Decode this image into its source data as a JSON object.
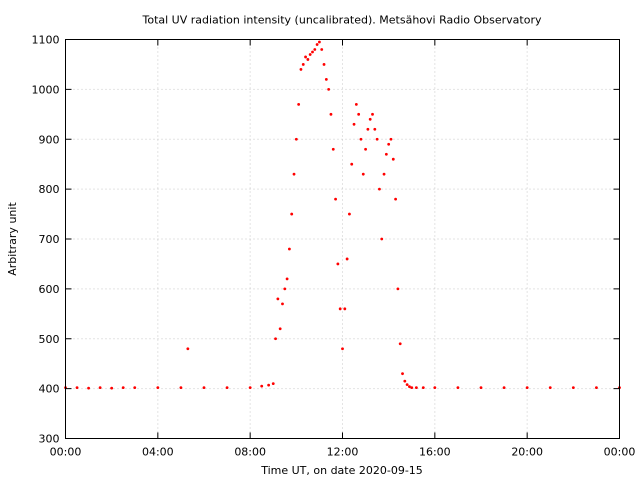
{
  "chart_data": {
    "type": "scatter",
    "title": "Total UV radiation intensity (uncalibrated). Metsähovi Radio Observatory",
    "xlabel": "Time UT, on date 2020-09-15",
    "ylabel": "Arbitrary unit",
    "xlim_hours": [
      0,
      24
    ],
    "ylim": [
      300,
      1100
    ],
    "grid": true,
    "legend": "none",
    "x_ticks": [
      {
        "hour": 0,
        "label": "00:00"
      },
      {
        "hour": 4,
        "label": "04:00"
      },
      {
        "hour": 8,
        "label": "08:00"
      },
      {
        "hour": 12,
        "label": "12:00"
      },
      {
        "hour": 16,
        "label": "16:00"
      },
      {
        "hour": 20,
        "label": "20:00"
      },
      {
        "hour": 24,
        "label": "00:00"
      }
    ],
    "y_ticks": [
      300,
      400,
      500,
      600,
      700,
      800,
      900,
      1000,
      1100
    ],
    "series": [
      {
        "color": "#ff0000",
        "x_hours": [
          0.0,
          0.5,
          1.0,
          1.5,
          2.0,
          2.5,
          3.0,
          4.0,
          5.0,
          5.3,
          6.0,
          7.0,
          8.0,
          8.5,
          8.8,
          9.0,
          9.1,
          9.2,
          9.3,
          9.4,
          9.5,
          9.6,
          9.7,
          9.8,
          9.9,
          10.0,
          10.1,
          10.2,
          10.3,
          10.4,
          10.5,
          10.6,
          10.7,
          10.8,
          10.9,
          11.0,
          11.1,
          11.2,
          11.3,
          11.4,
          11.5,
          11.6,
          11.7,
          11.8,
          11.9,
          12.0,
          12.1,
          12.2,
          12.3,
          12.4,
          12.5,
          12.6,
          12.7,
          12.8,
          12.9,
          13.0,
          13.1,
          13.2,
          13.3,
          13.4,
          13.5,
          13.6,
          13.7,
          13.8,
          13.9,
          14.0,
          14.1,
          14.2,
          14.3,
          14.4,
          14.5,
          14.6,
          14.7,
          14.8,
          14.9,
          15.0,
          15.2,
          15.5,
          16.0,
          17.0,
          18.0,
          19.0,
          20.0,
          21.0,
          22.0,
          23.0,
          24.0
        ],
        "y": [
          402,
          402,
          401,
          402,
          401,
          402,
          402,
          402,
          402,
          480,
          402,
          402,
          402,
          405,
          407,
          410,
          500,
          580,
          520,
          570,
          600,
          620,
          680,
          750,
          830,
          900,
          970,
          1040,
          1050,
          1065,
          1060,
          1070,
          1075,
          1080,
          1090,
          1095,
          1080,
          1050,
          1020,
          1000,
          950,
          880,
          780,
          650,
          560,
          480,
          560,
          660,
          750,
          850,
          930,
          970,
          950,
          900,
          830,
          880,
          920,
          940,
          950,
          920,
          900,
          800,
          700,
          830,
          870,
          890,
          900,
          860,
          780,
          600,
          490,
          430,
          415,
          408,
          404,
          402,
          402,
          402,
          402,
          402,
          402,
          402,
          402,
          402,
          402,
          402,
          402
        ]
      }
    ]
  }
}
